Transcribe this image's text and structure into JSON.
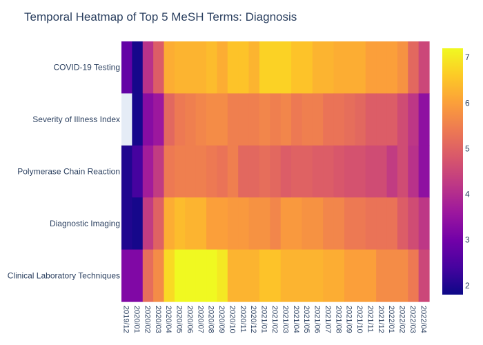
{
  "chart_data": {
    "type": "heatmap",
    "title": "Temporal Heatmap of Top 5 MeSH Terms: Diagnosis",
    "x": [
      "2019/12",
      "2020/01",
      "2020/02",
      "2020/03",
      "2020/04",
      "2020/05",
      "2020/06",
      "2020/07",
      "2020/08",
      "2020/09",
      "2020/10",
      "2020/11",
      "2020/12",
      "2021/01",
      "2021/02",
      "2021/03",
      "2021/04",
      "2021/05",
      "2021/06",
      "2021/07",
      "2021/08",
      "2021/09",
      "2021/10",
      "2021/11",
      "2021/12",
      "2022/01",
      "2022/02",
      "2022/03",
      "2022/04"
    ],
    "y": [
      "COVID-19 Testing",
      "Severity of Illness Index",
      "Polymerase Chain Reaction",
      "Diagnostic Imaging",
      "Clinical Laboratory Techniques"
    ],
    "z": [
      [
        2.8,
        1.9,
        4.1,
        4.9,
        6.2,
        6.3,
        6.3,
        6.3,
        6.4,
        6.2,
        6.5,
        6.5,
        6.3,
        6.7,
        6.7,
        6.7,
        6.5,
        6.5,
        6.3,
        6.3,
        6.2,
        6.2,
        6.2,
        6.0,
        6.0,
        6.0,
        5.8,
        5.1,
        4.5
      ],
      [
        null,
        1.9,
        3.3,
        3.6,
        5.1,
        5.4,
        5.5,
        5.6,
        5.7,
        5.7,
        5.5,
        5.5,
        5.5,
        5.6,
        5.5,
        5.6,
        5.4,
        5.5,
        5.5,
        5.3,
        5.3,
        5.2,
        5.1,
        4.9,
        4.9,
        4.9,
        4.6,
        4.2,
        3.4
      ],
      [
        2.0,
        2.4,
        3.7,
        4.3,
        5.4,
        5.5,
        5.5,
        5.5,
        5.4,
        5.3,
        5.5,
        5.1,
        5.1,
        5.2,
        5.1,
        4.9,
        5.0,
        5.0,
        4.9,
        4.9,
        4.8,
        4.7,
        4.7,
        4.6,
        4.6,
        4.3,
        4.6,
        4.1,
        3.4
      ],
      [
        2.0,
        1.9,
        4.3,
        5.0,
        6.2,
        6.4,
        6.3,
        6.3,
        6.0,
        6.0,
        5.9,
        5.9,
        5.8,
        5.8,
        5.6,
        5.9,
        5.9,
        5.8,
        5.8,
        5.6,
        5.6,
        5.4,
        5.4,
        5.3,
        5.3,
        5.3,
        4.9,
        4.6,
        4.2
      ],
      [
        3.2,
        3.2,
        5.2,
        5.7,
        6.8,
        7.2,
        7.2,
        7.2,
        7.2,
        7.0,
        6.3,
        6.3,
        6.3,
        6.5,
        6.5,
        6.3,
        6.3,
        6.3,
        6.3,
        6.2,
        6.2,
        6.0,
        6.0,
        6.0,
        5.7,
        5.7,
        5.7,
        5.4,
        4.5
      ]
    ],
    "colorscale": [
      "#0d0887",
      "#46039f",
      "#7201a8",
      "#9c179e",
      "#bd3786",
      "#d8576b",
      "#ed7953",
      "#fb9f3a",
      "#fdca26",
      "#f0f921"
    ],
    "zmin": 1.8,
    "zmax": 7.2,
    "colorbar_ticks": [
      2,
      3,
      4,
      5,
      6,
      7
    ],
    "missing_color": "#e5ecf6",
    "colorbar": true
  }
}
